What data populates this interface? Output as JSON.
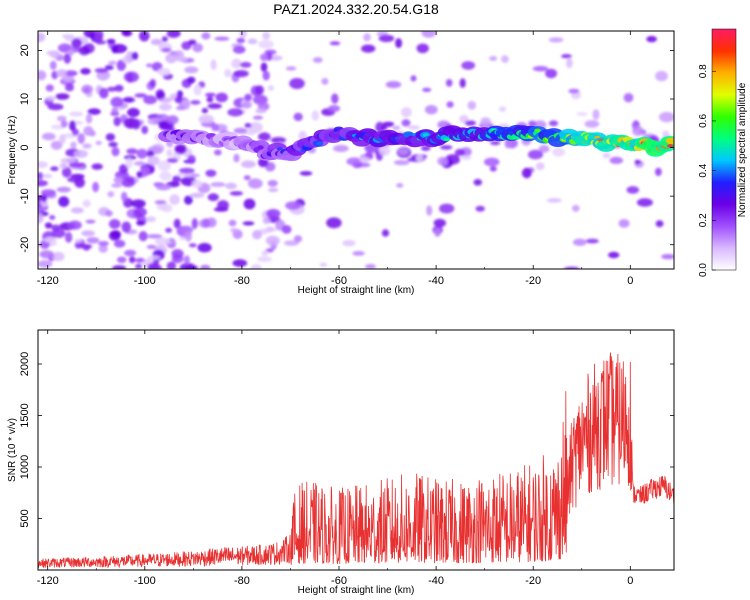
{
  "figure": {
    "title": "PAZ1.2024.332.20.54.G18"
  },
  "chart_data": [
    {
      "type": "heatmap",
      "xlabel": "Height of straight line (km)",
      "ylabel": "Frequency (Hz)",
      "xlim": [
        -122,
        9
      ],
      "ylim": [
        -25,
        24
      ],
      "x_ticks": [
        -120,
        -100,
        -80,
        -60,
        -40,
        -20,
        0
      ],
      "x_tick_labels": [
        "-120",
        "-100",
        "-80",
        "-60",
        "-40",
        "-20",
        "0"
      ],
      "y_ticks": [
        -20,
        -10,
        0,
        10,
        20
      ],
      "y_tick_labels": [
        "-20",
        "-10",
        "0",
        "10",
        "20"
      ],
      "ridge": {
        "description_values": "dominant frequency ridge (Hz) vs height (km)",
        "x": [
          -95,
          -90,
          -80,
          -75,
          -70,
          -65,
          -60,
          -55,
          -50,
          -45,
          -40,
          -35,
          -30,
          -25,
          -20,
          -15,
          -10,
          -5,
          0,
          5,
          9
        ],
        "frequency": [
          3,
          2,
          1,
          -1,
          -1,
          1,
          3,
          2,
          2,
          2,
          2,
          3,
          3,
          3,
          3,
          2,
          2,
          1,
          1,
          0,
          1
        ],
        "amplitude": [
          0.3,
          0.25,
          0.2,
          0.3,
          0.35,
          0.4,
          0.4,
          0.45,
          0.45,
          0.45,
          0.5,
          0.5,
          0.55,
          0.6,
          0.65,
          0.7,
          0.8,
          0.85,
          0.9,
          0.95,
          0.95
        ]
      },
      "grid": false,
      "colorbar": {
        "label": "Normalized spectral amplitude",
        "range": [
          0.0,
          0.97
        ],
        "ticks": [
          0.0,
          0.2,
          0.4,
          0.6,
          0.8
        ],
        "tick_labels": [
          "0.0",
          "0.2",
          "0.4",
          "0.6",
          "0.8"
        ],
        "colors": [
          "#ffffff",
          "#d9b8ff",
          "#a050ff",
          "#6a00e6",
          "#2020ff",
          "#00c8ff",
          "#00ff7f",
          "#30ff00",
          "#e0ff00",
          "#ffb000",
          "#ff3000",
          "#ff1a66"
        ]
      }
    },
    {
      "type": "line",
      "xlabel": "Height of straight line (km)",
      "ylabel": "SNR (10 * v/v)",
      "xlim": [
        -122,
        9
      ],
      "ylim": [
        0,
        2330
      ],
      "x_ticks": [
        -120,
        -100,
        -80,
        -60,
        -40,
        -20,
        0
      ],
      "x_tick_labels": [
        "-120",
        "-100",
        "-80",
        "-60",
        "-40",
        "-20",
        "0"
      ],
      "y_ticks": [
        500,
        1000,
        1500,
        2000
      ],
      "y_tick_labels": [
        "500",
        "1000",
        "1500",
        "2000"
      ],
      "grid": false,
      "line_color": "#e83030",
      "series": [
        {
          "x": [
            -122,
            -110,
            -100,
            -90,
            -85,
            -80,
            -75,
            -72,
            -70,
            -68,
            -65,
            -62,
            -60,
            -55,
            -50,
            -45,
            -40,
            -35,
            -30,
            -25,
            -20,
            -15,
            -13,
            -12,
            -10,
            -8,
            -5,
            -2,
            0,
            0.5,
            2,
            5,
            7,
            9
          ],
          "values": [
            100,
            120,
            140,
            170,
            200,
            210,
            230,
            260,
            330,
            420,
            420,
            400,
            390,
            410,
            440,
            470,
            440,
            430,
            470,
            480,
            520,
            600,
            900,
            1250,
            1500,
            1650,
            1780,
            1750,
            1800,
            730,
            700,
            780,
            800,
            700
          ]
        }
      ]
    }
  ]
}
